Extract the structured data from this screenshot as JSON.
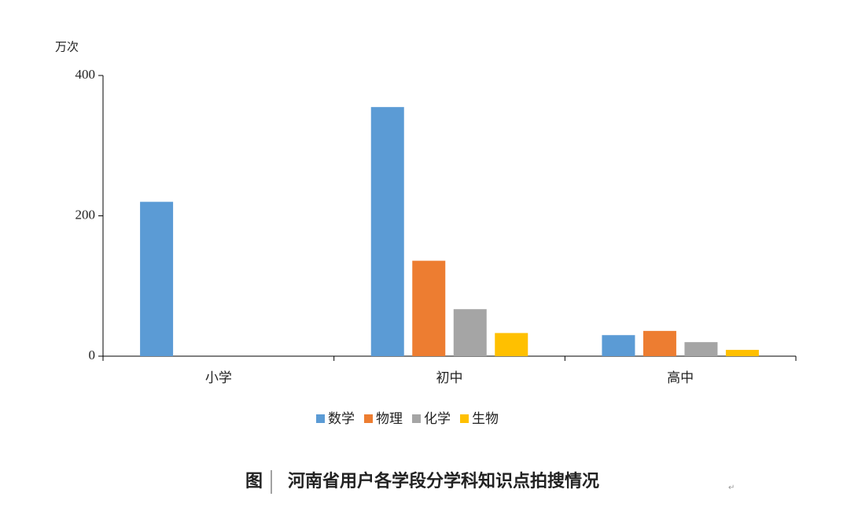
{
  "chart_data": {
    "type": "bar",
    "y_unit": "万次",
    "categories": [
      "小学",
      "初中",
      "高中"
    ],
    "series": [
      {
        "name": "数学",
        "color": "#5b9bd5",
        "values": [
          220,
          355,
          30
        ]
      },
      {
        "name": "物理",
        "color": "#ed7d31",
        "values": [
          null,
          136,
          36
        ]
      },
      {
        "name": "化学",
        "color": "#a5a5a5",
        "values": [
          null,
          67,
          20
        ]
      },
      {
        "name": "生物",
        "color": "#ffc000",
        "values": [
          null,
          33,
          9
        ]
      }
    ],
    "ylim": [
      0,
      400
    ],
    "yticks": [
      0,
      200,
      400
    ],
    "grid": false,
    "legend": "bottom",
    "caption_label": "图",
    "caption": "河南省用户各学段分学科知识点拍搜情况"
  }
}
